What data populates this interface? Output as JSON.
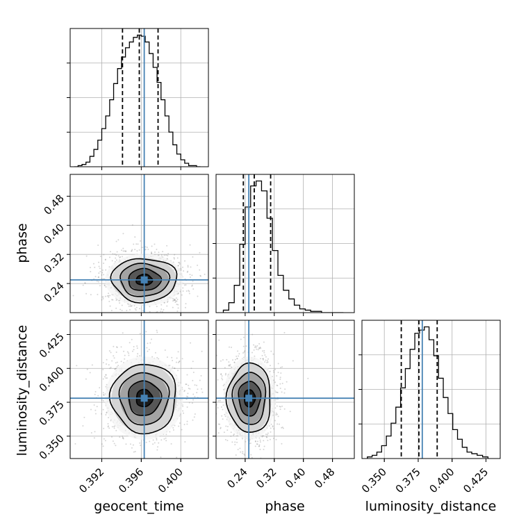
{
  "chart_data": {
    "type": "corner",
    "parameters": [
      "geocent_time",
      "phase",
      "luminosity_distance"
    ],
    "truth": {
      "geocent_time": 0.3963,
      "phase": 0.25,
      "luminosity_distance": 0.378
    },
    "colors": {
      "truth": "#4682b4",
      "hist": "#000000",
      "grid": "#b0b0b0",
      "frame": "#000000"
    },
    "grid": true,
    "axes": {
      "geocent_time": {
        "range": [
          0.3888,
          0.4028
        ],
        "ticks": [
          0.392,
          0.396,
          0.4
        ],
        "tick_labels": [
          "0.392",
          "0.396",
          "0.400"
        ]
      },
      "phase": {
        "range": [
          0.16,
          0.54
        ],
        "ticks": [
          0.24,
          0.32,
          0.4,
          0.48
        ],
        "tick_labels": [
          "0.24",
          "0.32",
          "0.40",
          "0.48"
        ]
      },
      "luminosity_distance": {
        "range": [
          0.3335,
          0.4355
        ],
        "ticks": [
          0.35,
          0.375,
          0.4,
          0.425
        ],
        "tick_labels": [
          "0.350",
          "0.375",
          "0.400",
          "0.425"
        ]
      }
    },
    "histograms": {
      "geocent_time": {
        "edges": [
          0.3892,
          0.3896,
          0.39,
          0.3904,
          0.3908,
          0.3912,
          0.3916,
          0.392,
          0.3924,
          0.3928,
          0.3932,
          0.3936,
          0.394,
          0.3944,
          0.3948,
          0.3952,
          0.3956,
          0.396,
          0.3964,
          0.3968,
          0.3972,
          0.3976,
          0.398,
          0.3984,
          0.3988,
          0.3992,
          0.3996,
          0.4,
          0.4004,
          0.4008,
          0.4012,
          0.4016,
          0.402
        ],
        "counts": [
          0,
          1,
          2,
          4,
          9,
          15,
          23,
          33,
          44,
          58,
          72,
          85,
          95,
          103,
          108,
          112,
          114,
          113,
          108,
          98,
          86,
          73,
          58,
          44,
          30,
          19,
          11,
          6,
          3,
          1,
          1,
          0
        ],
        "quantiles": [
          0.3941,
          0.3958,
          0.3977
        ]
      },
      "phase": {
        "edges": [
          0.18,
          0.195,
          0.21,
          0.225,
          0.24,
          0.255,
          0.27,
          0.285,
          0.3,
          0.315,
          0.33,
          0.345,
          0.36,
          0.375,
          0.39,
          0.405,
          0.42,
          0.435,
          0.45,
          0.465,
          0.48,
          0.495,
          0.51
        ],
        "counts": [
          2,
          8,
          22,
          55,
          85,
          102,
          106,
          98,
          76,
          50,
          30,
          18,
          11,
          6,
          3,
          2,
          1,
          1,
          0,
          0,
          0,
          0
        ],
        "quantiles": [
          0.235,
          0.265,
          0.31
        ]
      },
      "luminosity_distance": {
        "edges": [
          0.3375,
          0.341,
          0.3445,
          0.348,
          0.3515,
          0.355,
          0.3585,
          0.362,
          0.3655,
          0.369,
          0.3725,
          0.376,
          0.3795,
          0.383,
          0.3865,
          0.39,
          0.3935,
          0.397,
          0.4005,
          0.404,
          0.4075,
          0.411,
          0.4145,
          0.4185,
          0.4225,
          0.4265
        ],
        "counts": [
          1,
          2,
          4,
          8,
          14,
          22,
          32,
          44,
          56,
          68,
          78,
          80,
          82,
          74,
          64,
          50,
          38,
          28,
          18,
          12,
          7,
          4,
          3,
          2,
          1
        ],
        "quantiles": [
          0.3625,
          0.3755,
          0.389
        ]
      }
    },
    "pairs": [
      {
        "x": "geocent_time",
        "y": "phase",
        "center": [
          0.3963,
          0.25
        ],
        "spread": [
          0.00165,
          0.03
        ],
        "levels": [
          0.5,
          1.0,
          1.5,
          2.0
        ]
      },
      {
        "x": "geocent_time",
        "y": "luminosity_distance",
        "center": [
          0.3963,
          0.378
        ],
        "spread": [
          0.00165,
          0.0128
        ],
        "levels": [
          0.5,
          1.0,
          1.5,
          2.0
        ]
      },
      {
        "x": "phase",
        "y": "luminosity_distance",
        "center": [
          0.252,
          0.378
        ],
        "spread": [
          0.03,
          0.0128
        ],
        "levels": [
          0.5,
          1.0,
          1.5,
          2.0
        ]
      }
    ]
  }
}
